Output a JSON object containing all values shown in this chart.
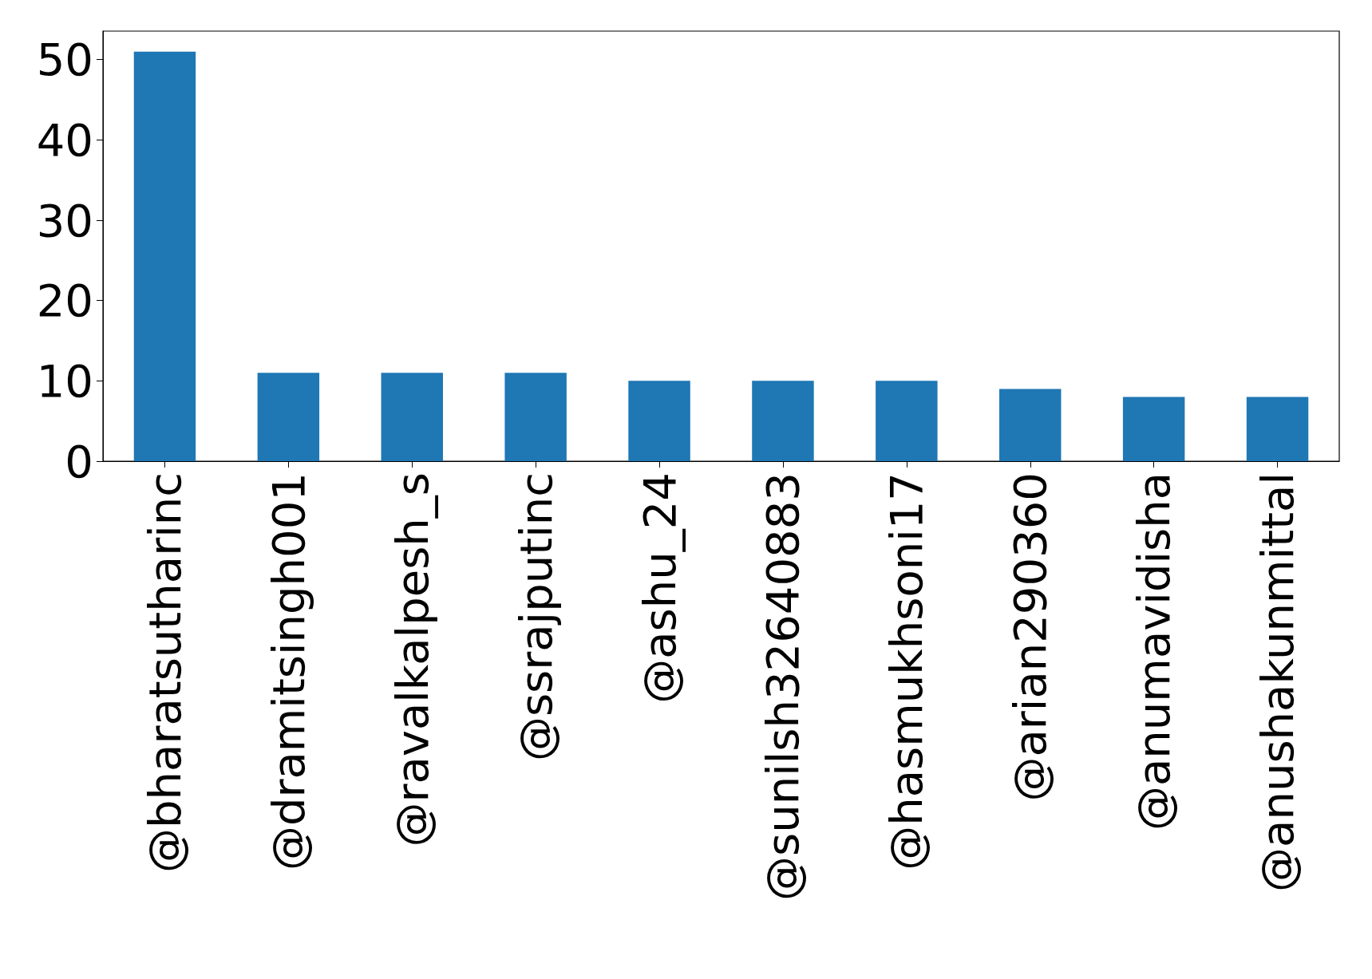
{
  "chart_data": {
    "type": "bar",
    "categories": [
      "@bharatsutharinc",
      "@dramitsingh001",
      "@ravalkalpesh_s",
      "@ssrajputinc",
      "@ashu_24",
      "@sunilsh32640883",
      "@hasmukhsoni17",
      "@arian290360",
      "@anumavidisha",
      "@anushakunmittal"
    ],
    "values": [
      51,
      11,
      11,
      11,
      10,
      10,
      10,
      9,
      8,
      8
    ],
    "color": "#1f77b4",
    "ylim": [
      0,
      53.55
    ],
    "yticks": [
      0,
      10,
      20,
      30,
      40,
      50
    ],
    "grid": false
  }
}
